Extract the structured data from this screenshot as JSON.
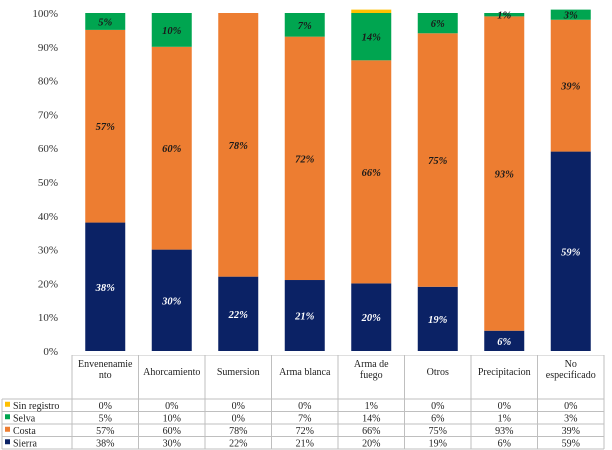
{
  "chart_data": {
    "type": "bar",
    "stacked": true,
    "categories": [
      "Envenenamiento",
      "Ahorcamiento",
      "Sumersion",
      "Arma blanca",
      "Arma de fuego",
      "Otros",
      "Precipitacion",
      "No especificado"
    ],
    "category_labels": [
      [
        "Envenenamie",
        "nto"
      ],
      [
        "Ahorcamiento"
      ],
      [
        "Sumersion"
      ],
      [
        "Arma blanca"
      ],
      [
        "Arma de",
        "fuego"
      ],
      [
        "Otros"
      ],
      [
        "Precipitacion"
      ],
      [
        "No",
        "especificado"
      ]
    ],
    "series": [
      {
        "name": "Sierra",
        "color": "#0b2265",
        "values": [
          38,
          30,
          22,
          21,
          20,
          19,
          6,
          59
        ],
        "label_color": "#ffffff"
      },
      {
        "name": "Costa",
        "color": "#ed7d31",
        "values": [
          57,
          60,
          78,
          72,
          66,
          75,
          93,
          39
        ],
        "label_color": "#1a1a1a"
      },
      {
        "name": "Selva",
        "color": "#00a550",
        "values": [
          5,
          10,
          0,
          7,
          14,
          6,
          1,
          3
        ],
        "label_color": "#1a1a1a"
      },
      {
        "name": "Sin registro",
        "color": "#ffc000",
        "values": [
          0,
          0,
          0,
          0,
          1,
          0,
          0,
          0
        ],
        "label_color": "#1a1a1a"
      }
    ],
    "ylim": [
      0,
      100
    ],
    "yticks": [
      "0%",
      "10%",
      "20%",
      "30%",
      "40%",
      "50%",
      "60%",
      "70%",
      "80%",
      "90%",
      "100%"
    ],
    "grid": false,
    "legend": "table",
    "table_row_order": [
      "Sin registro",
      "Selva",
      "Costa",
      "Sierra"
    ]
  }
}
